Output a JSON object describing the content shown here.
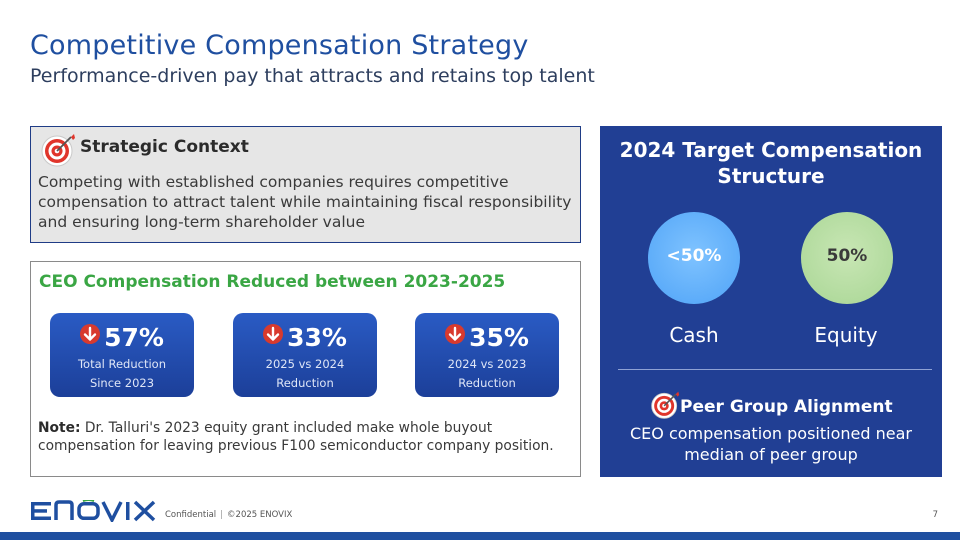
{
  "header": {
    "title": "Competitive Compensation Strategy",
    "subtitle": "Performance-driven pay that attracts and retains top talent"
  },
  "context": {
    "heading": "Strategic Context",
    "icon": "target-icon",
    "text": "Competing with established companies requires competitive compensation to attract talent while maintaining fiscal responsibility and ensuring long-term shareholder value"
  },
  "ceo": {
    "heading": "CEO Compensation Reduced between 2023-2025",
    "stats": [
      {
        "value": "57%",
        "line1": "Total Reduction",
        "line2": "Since 2023",
        "icon": "down-arrow-icon"
      },
      {
        "value": "33%",
        "line1": "2025 vs 2024",
        "line2": "Reduction",
        "icon": "down-arrow-icon"
      },
      {
        "value": "35%",
        "line1": "2024 vs 2023",
        "line2": "Reduction",
        "icon": "down-arrow-icon"
      }
    ],
    "note_label": "Note:",
    "note_text": " Dr. Talluri's 2023 equity grant included make whole buyout compensation for leaving previous F100 semiconductor company position."
  },
  "target_structure": {
    "title": "2024 Target Compensation Structure",
    "items": [
      {
        "value": "<50%",
        "label": "Cash",
        "color": "#5aa9f7"
      },
      {
        "value": "50%",
        "label": "Equity",
        "color": "#b3dc9f"
      }
    ],
    "peer_heading": "Peer Group Alignment",
    "peer_text": "CEO compensation positioned near median of peer group"
  },
  "footer": {
    "logo_text": "ENOVIX",
    "confidential": "Confidential",
    "separator": "|",
    "copyright": "©2025 ENOVIX",
    "page_number": "7"
  },
  "colors": {
    "title_blue": "#1f4fa0",
    "panel_navy": "#213f94",
    "green": "#3aa644",
    "card_blue": "#2a5bc4",
    "arrow_red": "#d83a2e"
  }
}
